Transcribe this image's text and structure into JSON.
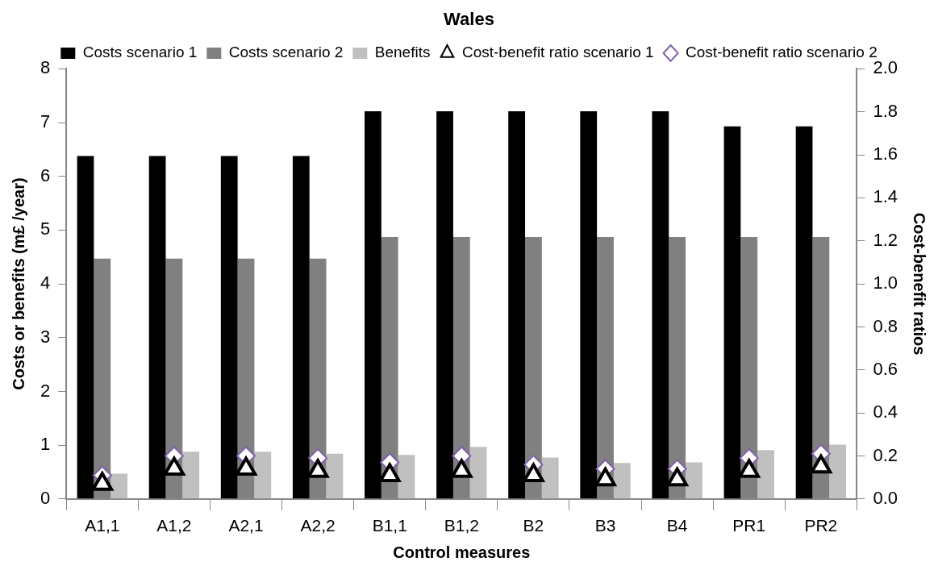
{
  "chart_data": {
    "type": "bar",
    "title": "Wales",
    "xlabel": "Control measures",
    "ylabel": "Costs or benefits (m£ /year)",
    "y2label": "Cost-benefit ratios",
    "categories": [
      "A1,1",
      "A1,2",
      "A2,1",
      "A2,2",
      "B1,1",
      "B1,2",
      "B2",
      "B3",
      "B4",
      "PR1",
      "PR2"
    ],
    "series": [
      {
        "name": "Costs scenario 1",
        "color": "#000000",
        "values": [
          6.38,
          6.38,
          6.38,
          6.38,
          7.21,
          7.21,
          7.21,
          7.21,
          7.21,
          6.93,
          6.93
        ]
      },
      {
        "name": "Costs scenario 2",
        "color": "#808080",
        "values": [
          4.47,
          4.47,
          4.47,
          4.47,
          4.87,
          4.87,
          4.87,
          4.87,
          4.87,
          4.87,
          4.87
        ]
      },
      {
        "name": "Benefits",
        "color": "#c0c0c0",
        "values": [
          0.47,
          0.88,
          0.88,
          0.84,
          0.82,
          0.97,
          0.77,
          0.67,
          0.68,
          0.91,
          1.01
        ]
      },
      {
        "name": "Cost-benefit ratio scenario 1",
        "type": "scatter",
        "axis": "y2",
        "marker": "triangle",
        "color": "#000000",
        "values": [
          0.07,
          0.14,
          0.14,
          0.13,
          0.11,
          0.13,
          0.11,
          0.09,
          0.09,
          0.13,
          0.15
        ]
      },
      {
        "name": "Cost-benefit ratio scenario 2",
        "type": "scatter",
        "axis": "y2",
        "marker": "diamond",
        "color": "#7f60a8",
        "values": [
          0.11,
          0.2,
          0.2,
          0.19,
          0.17,
          0.2,
          0.16,
          0.14,
          0.14,
          0.19,
          0.21
        ]
      }
    ],
    "ylim": [
      0,
      8
    ],
    "yticks": [
      0,
      1,
      2,
      3,
      4,
      5,
      6,
      7,
      8
    ],
    "y2lim": [
      0,
      2
    ],
    "y2ticks": [
      {
        "value": 0,
        "label": "0.0"
      },
      {
        "value": 0.2,
        "label": "0.2"
      },
      {
        "value": 0.4,
        "label": "0.4"
      },
      {
        "value": 0.6,
        "label": "0.6"
      },
      {
        "value": 0.8,
        "label": "0.8"
      },
      {
        "value": 1,
        "label": "1.0"
      },
      {
        "value": 1.2,
        "label": "1.2"
      },
      {
        "value": 1.4,
        "label": "1.4"
      },
      {
        "value": 1.6,
        "label": "1.6"
      },
      {
        "value": 1.8,
        "label": "1.8"
      },
      {
        "value": 2,
        "label": "2.0"
      }
    ],
    "legend": "top",
    "grid": false
  }
}
